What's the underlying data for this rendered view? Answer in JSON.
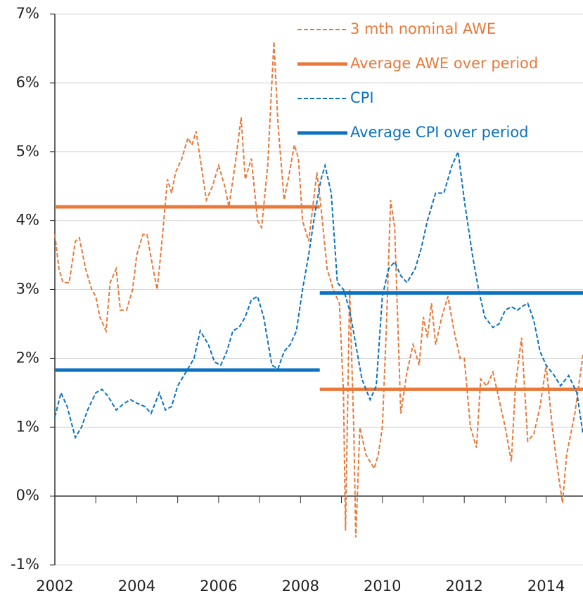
{
  "chart_data": {
    "type": "line",
    "yticks": [
      {
        "value": -1,
        "label": "-1%"
      },
      {
        "value": 0,
        "label": "0%"
      },
      {
        "value": 1,
        "label": "1%"
      },
      {
        "value": 2,
        "label": "2%"
      },
      {
        "value": 3,
        "label": "3%"
      },
      {
        "value": 4,
        "label": "4%"
      },
      {
        "value": 5,
        "label": "5%"
      },
      {
        "value": 6,
        "label": "6%"
      },
      {
        "value": 7,
        "label": "7%"
      }
    ],
    "ylim": [
      -1,
      7
    ],
    "xlim": [
      2002,
      2014.9
    ],
    "xticks": [
      2002,
      2004,
      2006,
      2008,
      2010,
      2012,
      2014
    ],
    "grid": true,
    "legend": "upper right",
    "series": [
      {
        "name": "3 mth nominal AWE",
        "color": "#e8793a",
        "style": "dashed",
        "x": [
          2002.0,
          2002.1,
          2002.2,
          2002.35,
          2002.5,
          2002.6,
          2002.75,
          2002.9,
          2003.0,
          2003.1,
          2003.25,
          2003.35,
          2003.5,
          2003.6,
          2003.75,
          2003.9,
          2004.0,
          2004.15,
          2004.25,
          2004.4,
          2004.5,
          2004.6,
          2004.75,
          2004.85,
          2004.95,
          2005.1,
          2005.25,
          2005.35,
          2005.45,
          2005.55,
          2005.7,
          2005.85,
          2006.0,
          2006.15,
          2006.25,
          2006.4,
          2006.55,
          2006.65,
          2006.8,
          2006.95,
          2007.05,
          2007.2,
          2007.35,
          2007.45,
          2007.6,
          2007.7,
          2007.85,
          2007.95,
          2008.05,
          2008.2,
          2008.3,
          2008.4,
          2008.5,
          2008.65,
          2008.8,
          2008.95,
          2009.05,
          2009.1,
          2009.2,
          2009.3,
          2009.35,
          2009.45,
          2009.6,
          2009.8,
          2009.9,
          2010.0,
          2010.1,
          2010.2,
          2010.3,
          2010.45,
          2010.6,
          2010.75,
          2010.9,
          2011.0,
          2011.1,
          2011.2,
          2011.3,
          2011.45,
          2011.6,
          2011.75,
          2011.9,
          2012.0,
          2012.15,
          2012.3,
          2012.4,
          2012.55,
          2012.7,
          2012.85,
          2013.0,
          2013.15,
          2013.25,
          2013.4,
          2013.55,
          2013.7,
          2013.85,
          2014.0,
          2014.15,
          2014.3,
          2014.4,
          2014.5,
          2014.7,
          2014.9
        ],
        "values": [
          3.8,
          3.3,
          3.1,
          3.1,
          3.7,
          3.75,
          3.3,
          3.0,
          2.9,
          2.6,
          2.4,
          3.1,
          3.3,
          2.7,
          2.7,
          3.0,
          3.5,
          3.8,
          3.8,
          3.3,
          3.0,
          3.6,
          4.6,
          4.4,
          4.7,
          4.9,
          5.2,
          5.1,
          5.3,
          4.9,
          4.3,
          4.5,
          4.8,
          4.5,
          4.2,
          4.8,
          5.5,
          4.6,
          4.9,
          4.0,
          3.9,
          4.8,
          6.6,
          5.4,
          4.3,
          4.6,
          5.1,
          4.9,
          4.0,
          3.7,
          4.2,
          4.7,
          4.2,
          3.3,
          3.0,
          2.8,
          1.5,
          -0.5,
          3.0,
          1.0,
          -0.6,
          1.0,
          0.6,
          0.4,
          0.6,
          1.0,
          2.5,
          4.3,
          3.9,
          1.2,
          1.8,
          2.2,
          1.9,
          2.6,
          2.3,
          2.8,
          2.2,
          2.6,
          2.9,
          2.4,
          2.0,
          2.0,
          1.0,
          0.7,
          1.7,
          1.6,
          1.8,
          1.4,
          1.0,
          0.5,
          1.6,
          2.3,
          0.8,
          0.9,
          1.3,
          1.9,
          1.0,
          0.3,
          -0.1,
          0.6,
          1.2,
          2.05
        ]
      },
      {
        "name": "Average AWE over period",
        "color": "#e8793a",
        "style": "solid",
        "x": [
          2002,
          2008.47,
          2008.47,
          2008.47,
          2014.9
        ],
        "values": [
          4.2,
          4.2,
          null,
          1.55,
          1.55
        ]
      },
      {
        "name": "CPI",
        "color": "#0a72c0",
        "style": "dashed",
        "x": [
          2002.0,
          2002.15,
          2002.3,
          2002.5,
          2002.65,
          2002.8,
          2003.0,
          2003.15,
          2003.3,
          2003.5,
          2003.7,
          2003.85,
          2004.0,
          2004.2,
          2004.35,
          2004.55,
          2004.7,
          2004.85,
          2005.0,
          2005.2,
          2005.4,
          2005.55,
          2005.75,
          2005.9,
          2006.05,
          2006.2,
          2006.35,
          2006.5,
          2006.65,
          2006.8,
          2006.95,
          2007.1,
          2007.3,
          2007.45,
          2007.6,
          2007.75,
          2007.9,
          2008.05,
          2008.2,
          2008.35,
          2008.5,
          2008.6,
          2008.75,
          2008.9,
          2009.05,
          2009.2,
          2009.35,
          2009.5,
          2009.7,
          2009.85,
          2010.0,
          2010.15,
          2010.3,
          2010.45,
          2010.6,
          2010.8,
          2010.95,
          2011.1,
          2011.3,
          2011.5,
          2011.7,
          2011.85,
          2012.0,
          2012.2,
          2012.35,
          2012.5,
          2012.7,
          2012.85,
          2013.0,
          2013.15,
          2013.3,
          2013.4,
          2013.55,
          2013.7,
          2013.85,
          2014.0,
          2014.2,
          2014.35,
          2014.55,
          2014.75,
          2014.9
        ],
        "values": [
          1.15,
          1.5,
          1.3,
          0.85,
          1.0,
          1.25,
          1.5,
          1.55,
          1.45,
          1.25,
          1.35,
          1.4,
          1.35,
          1.3,
          1.2,
          1.5,
          1.25,
          1.3,
          1.6,
          1.8,
          2.0,
          2.4,
          2.2,
          1.95,
          1.9,
          2.1,
          2.4,
          2.45,
          2.6,
          2.85,
          2.9,
          2.6,
          1.9,
          1.85,
          2.1,
          2.2,
          2.4,
          3.0,
          3.5,
          4.1,
          4.6,
          4.8,
          4.4,
          3.1,
          3.0,
          2.7,
          2.2,
          1.7,
          1.4,
          1.6,
          2.9,
          3.3,
          3.4,
          3.2,
          3.1,
          3.3,
          3.6,
          4.0,
          4.4,
          4.4,
          4.8,
          5.0,
          4.3,
          3.5,
          3.0,
          2.6,
          2.45,
          2.5,
          2.7,
          2.75,
          2.7,
          2.75,
          2.8,
          2.55,
          2.1,
          1.9,
          1.75,
          1.6,
          1.75,
          1.5,
          0.9
        ]
      },
      {
        "name": "Average CPI over period",
        "color": "#0a72c0",
        "style": "solid",
        "x": [
          2002,
          2008.47,
          2008.47,
          2008.47,
          2014.9
        ],
        "values": [
          1.83,
          1.83,
          null,
          2.95,
          2.95
        ]
      }
    ]
  }
}
